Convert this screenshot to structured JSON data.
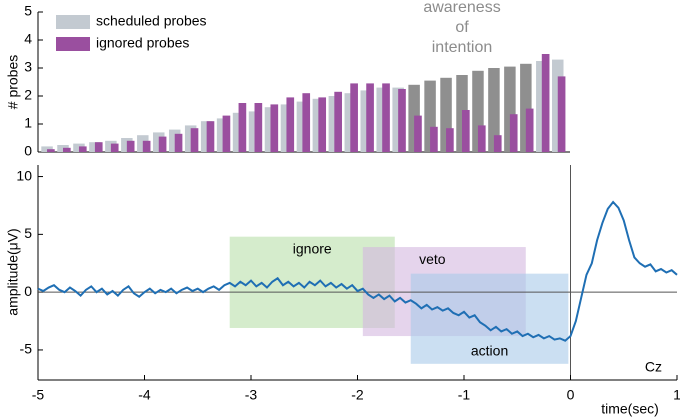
{
  "chart_data": [
    {
      "type": "bar",
      "ylabel": "# probes",
      "xlim": [
        -5,
        0
      ],
      "ylim": [
        0,
        5
      ],
      "yticks": [
        0,
        1,
        2,
        3,
        4,
        5
      ],
      "legend": "upper left",
      "annotation": [
        "awareness",
        "of",
        "intention"
      ],
      "annotation_color": "#8c8c8c",
      "x": [
        -4.9,
        -4.75,
        -4.6,
        -4.45,
        -4.3,
        -4.15,
        -4.0,
        -3.85,
        -3.7,
        -3.55,
        -3.4,
        -3.25,
        -3.1,
        -2.95,
        -2.8,
        -2.65,
        -2.5,
        -2.35,
        -2.2,
        -2.05,
        -1.9,
        -1.75,
        -1.6,
        -1.45,
        -1.3,
        -1.15,
        -1.0,
        -0.85,
        -0.7,
        -0.55,
        -0.4,
        -0.25,
        -0.1
      ],
      "series": [
        {
          "name": "scheduled probes",
          "color": "#c3cad1",
          "colors": [
            "#c3cad1",
            "#c3cad1",
            "#c3cad1",
            "#c3cad1",
            "#c3cad1",
            "#c3cad1",
            "#c3cad1",
            "#c3cad1",
            "#c3cad1",
            "#c3cad1",
            "#c3cad1",
            "#c3cad1",
            "#c3cad1",
            "#c3cad1",
            "#c3cad1",
            "#c3cad1",
            "#c3cad1",
            "#c3cad1",
            "#c3cad1",
            "#c3cad1",
            "#c3cad1",
            "#c3cad1",
            "#c3cad1",
            "#8f8f8f",
            "#8f8f8f",
            "#8f8f8f",
            "#8f8f8f",
            "#8f8f8f",
            "#8f8f8f",
            "#8f8f8f",
            "#8f8f8f",
            "#c3cad1",
            "#c3cad1"
          ],
          "values": [
            0.2,
            0.25,
            0.3,
            0.35,
            0.4,
            0.5,
            0.6,
            0.7,
            0.8,
            0.95,
            1.1,
            1.2,
            1.4,
            1.45,
            1.6,
            1.7,
            1.8,
            1.9,
            2.0,
            2.1,
            2.2,
            2.3,
            2.3,
            2.4,
            2.55,
            2.65,
            2.75,
            2.9,
            3.0,
            3.05,
            3.15,
            3.25,
            3.3
          ]
        },
        {
          "name": "ignored probes",
          "color": "#9a4f9f",
          "values": [
            0.1,
            0.15,
            0.2,
            0.35,
            0.3,
            0.4,
            0.4,
            0.55,
            0.65,
            0.85,
            1.1,
            1.3,
            1.75,
            1.75,
            1.7,
            1.95,
            2.1,
            1.95,
            2.15,
            2.45,
            2.45,
            2.45,
            2.25,
            1.3,
            0.9,
            0.85,
            1.5,
            0.95,
            0.6,
            1.35,
            1.55,
            3.5,
            2.7
          ]
        }
      ]
    },
    {
      "type": "line",
      "xlabel": "time(sec)",
      "ylabel": "amplitude(μV)",
      "note": "Cz",
      "xlim": [
        -5,
        1
      ],
      "ylim": [
        -7.6,
        11
      ],
      "xticks": [
        -5,
        -4,
        -3,
        -2,
        -1,
        0,
        1
      ],
      "yticks": [
        -5,
        0,
        5,
        10
      ],
      "regions": [
        {
          "label": "ignore",
          "x": [
            -3.2,
            -1.65
          ],
          "y": [
            -3.1,
            4.8
          ],
          "color": "#b9e0aa"
        },
        {
          "label": "veto",
          "x": [
            -1.95,
            -0.42
          ],
          "y": [
            -3.8,
            3.9
          ],
          "color": "#d3b7df"
        },
        {
          "label": "action",
          "x": [
            -1.5,
            -0.02
          ],
          "y": [
            -6.2,
            1.6
          ],
          "color": "#a9c9e9"
        }
      ],
      "x": [
        -5.0,
        -4.95,
        -4.9,
        -4.85,
        -4.8,
        -4.75,
        -4.7,
        -4.65,
        -4.6,
        -4.55,
        -4.5,
        -4.45,
        -4.4,
        -4.35,
        -4.3,
        -4.25,
        -4.2,
        -4.15,
        -4.1,
        -4.05,
        -4.0,
        -3.95,
        -3.9,
        -3.85,
        -3.8,
        -3.75,
        -3.7,
        -3.65,
        -3.6,
        -3.55,
        -3.5,
        -3.45,
        -3.4,
        -3.35,
        -3.3,
        -3.25,
        -3.2,
        -3.15,
        -3.1,
        -3.05,
        -3.0,
        -2.95,
        -2.9,
        -2.85,
        -2.8,
        -2.75,
        -2.7,
        -2.65,
        -2.6,
        -2.55,
        -2.5,
        -2.45,
        -2.4,
        -2.35,
        -2.3,
        -2.25,
        -2.2,
        -2.15,
        -2.1,
        -2.05,
        -2.0,
        -1.95,
        -1.9,
        -1.85,
        -1.8,
        -1.75,
        -1.7,
        -1.65,
        -1.6,
        -1.55,
        -1.5,
        -1.45,
        -1.4,
        -1.35,
        -1.3,
        -1.25,
        -1.2,
        -1.15,
        -1.1,
        -1.05,
        -1.0,
        -0.95,
        -0.9,
        -0.85,
        -0.8,
        -0.75,
        -0.7,
        -0.65,
        -0.6,
        -0.55,
        -0.5,
        -0.45,
        -0.4,
        -0.35,
        -0.3,
        -0.25,
        -0.2,
        -0.15,
        -0.1,
        -0.05,
        0.0,
        0.05,
        0.1,
        0.15,
        0.2,
        0.25,
        0.3,
        0.35,
        0.4,
        0.45,
        0.5,
        0.55,
        0.6,
        0.65,
        0.7,
        0.75,
        0.8,
        0.85,
        0.9,
        0.95,
        1.0
      ],
      "series": [
        {
          "name": "Cz amplitude",
          "color": "#1f6fb4",
          "values": [
            0.3,
            0.1,
            0.4,
            0.6,
            0.2,
            0.0,
            0.4,
            0.1,
            -0.3,
            0.2,
            0.5,
            0.0,
            0.3,
            -0.2,
            0.1,
            -0.3,
            0.2,
            0.5,
            -0.1,
            -0.4,
            0.0,
            0.3,
            -0.1,
            0.2,
            0.0,
            0.3,
            -0.1,
            0.2,
            0.4,
            0.1,
            0.3,
            0.0,
            0.3,
            0.5,
            0.2,
            0.6,
            0.8,
            0.5,
            0.9,
            0.6,
            1.0,
            0.5,
            0.8,
            0.4,
            0.9,
            1.2,
            0.6,
            0.9,
            0.5,
            0.8,
            0.4,
            0.9,
            0.6,
            1.0,
            0.5,
            0.8,
            0.4,
            0.7,
            0.3,
            0.6,
            0.1,
            0.3,
            -0.2,
            -0.5,
            -0.2,
            -0.6,
            -0.3,
            -0.8,
            -0.5,
            -0.9,
            -0.7,
            -1.0,
            -1.4,
            -1.1,
            -1.5,
            -1.3,
            -1.6,
            -1.4,
            -1.8,
            -2.0,
            -1.7,
            -2.2,
            -2.0,
            -2.6,
            -2.9,
            -3.3,
            -3.0,
            -3.4,
            -3.2,
            -3.6,
            -3.4,
            -3.8,
            -3.6,
            -3.9,
            -3.7,
            -4.0,
            -3.8,
            -4.1,
            -4.0,
            -4.2,
            -3.8,
            -2.5,
            -0.5,
            1.5,
            2.5,
            4.5,
            6.0,
            7.2,
            7.8,
            7.3,
            6.2,
            4.5,
            3.0,
            2.5,
            2.2,
            2.4,
            1.8,
            2.0,
            1.7,
            1.9,
            1.5
          ]
        }
      ]
    }
  ]
}
